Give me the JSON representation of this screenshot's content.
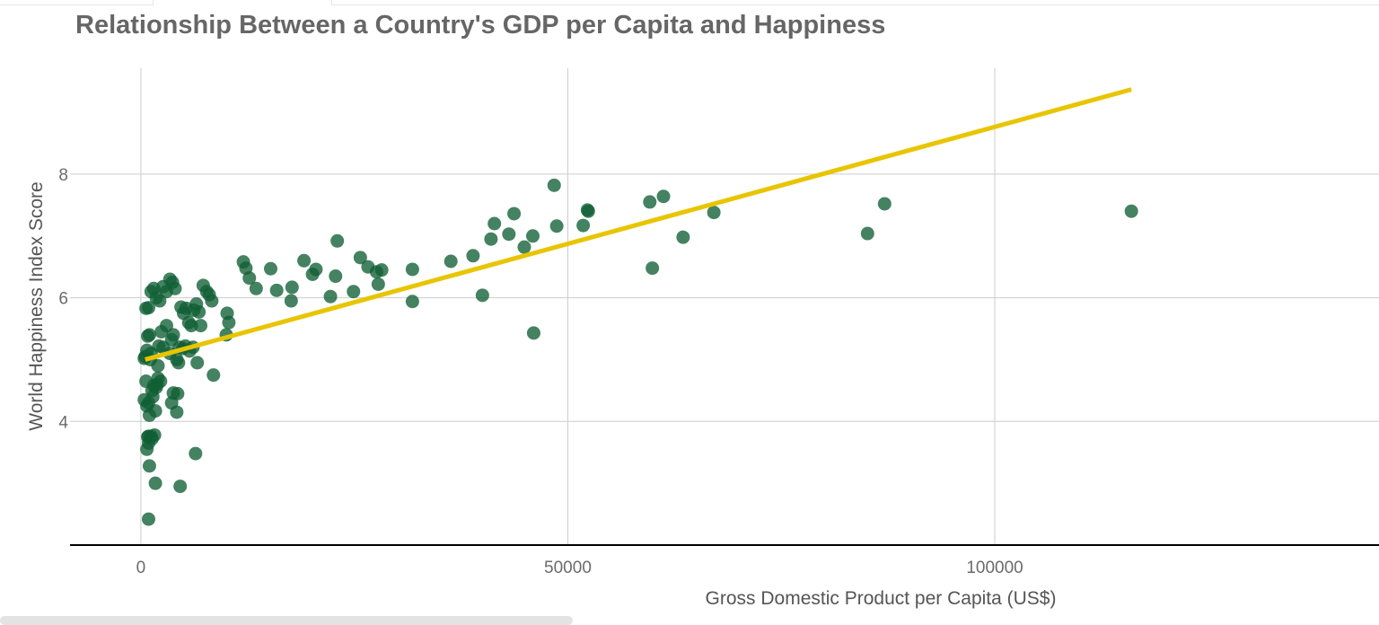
{
  "colors": {
    "points": "#0f5f35",
    "trend": "#e8c500",
    "grid": "#cccccc",
    "axis": "#000000"
  },
  "chart_data": {
    "type": "scatter",
    "title": "Relationship Between a Country's GDP per Capita and Happiness",
    "xlabel": "Gross Domestic Product per Capita (US$)",
    "ylabel": "World Happiness Index Score",
    "xlim": [
      -8300,
      145000
    ],
    "ylim": [
      2.0,
      9.8
    ],
    "xticks": [
      0,
      50000,
      100000
    ],
    "xtick_labels": [
      "0",
      "50000",
      "100000"
    ],
    "yticks": [
      4,
      6,
      8
    ],
    "ytick_labels": [
      "4",
      "6",
      "8"
    ],
    "grid": true,
    "legend": "none",
    "series": [
      {
        "x": [
          500,
          700,
          800,
          1000,
          1100,
          1200,
          600,
          900,
          1300,
          1500,
          1800,
          2000,
          400,
          700,
          1000,
          1400,
          1700,
          1900,
          2100,
          2400,
          2600,
          3000,
          3400,
          3600,
          3800,
          4200,
          4400,
          4700,
          5000,
          5300,
          5600,
          5900,
          6200,
          6500,
          6800,
          7000,
          7300,
          7700,
          8000,
          8300,
          600,
          900,
          1200,
          1500,
          1800,
          2200,
          2600,
          3000,
          3400,
          3700,
          4000,
          4500,
          4900,
          5200,
          5700,
          6100,
          6600,
          8500,
          900,
          1200,
          1600,
          2000,
          2300,
          3600,
          3800,
          4200,
          4300,
          700,
          1000,
          1700,
          800,
          900,
          1300,
          6400,
          4600,
          900,
          400,
          10000,
          10300,
          10100,
          12000,
          12700,
          12300,
          13500,
          15200,
          15900,
          17600,
          17700,
          20100,
          20500,
          19100,
          22200,
          22800,
          23000,
          24900,
          25700,
          26600,
          27600,
          27800,
          28200,
          31800,
          31800,
          36300,
          38900,
          40000,
          41000,
          41400,
          43100,
          43700,
          44900,
          45900,
          46000,
          48400,
          48700,
          51800,
          52300,
          52400,
          59600,
          59900,
          61200,
          63500,
          67100,
          85100,
          87100,
          116000
        ],
        "y": [
          5.05,
          5.15,
          5.38,
          5.4,
          5.0,
          5.1,
          4.65,
          4.3,
          4.5,
          4.58,
          4.55,
          4.9,
          4.35,
          4.25,
          4.1,
          4.4,
          4.17,
          4.6,
          5.22,
          5.45,
          5.2,
          5.55,
          5.1,
          5.32,
          5.4,
          5.0,
          4.95,
          5.85,
          5.75,
          5.83,
          5.6,
          5.55,
          5.8,
          5.9,
          5.77,
          5.55,
          6.2,
          6.1,
          6.05,
          5.95,
          5.83,
          5.84,
          6.1,
          6.15,
          6.0,
          5.95,
          6.18,
          6.1,
          6.3,
          6.25,
          6.15,
          5.2,
          5.18,
          5.22,
          5.14,
          5.2,
          4.95,
          4.75,
          3.76,
          3.76,
          3.78,
          4.7,
          4.65,
          4.3,
          4.46,
          4.15,
          4.45,
          3.55,
          3.28,
          3.0,
          3.75,
          3.65,
          3.72,
          3.48,
          2.95,
          2.42,
          5.02,
          5.4,
          5.6,
          5.75,
          6.58,
          6.32,
          6.48,
          6.15,
          6.47,
          6.12,
          5.95,
          6.17,
          6.38,
          6.46,
          6.6,
          6.02,
          6.35,
          6.92,
          6.1,
          6.65,
          6.5,
          6.42,
          6.22,
          6.45,
          5.94,
          6.46,
          6.59,
          6.68,
          6.04,
          6.95,
          7.2,
          7.03,
          7.36,
          6.82,
          7.0,
          5.43,
          7.82,
          7.16,
          7.17,
          7.42,
          7.4,
          7.55,
          6.48,
          7.64,
          6.98,
          7.38,
          7.04,
          7.52,
          7.4
        ]
      }
    ],
    "trendline": {
      "x": [
        500,
        116000
      ],
      "y": [
        5.0,
        9.37
      ]
    }
  }
}
